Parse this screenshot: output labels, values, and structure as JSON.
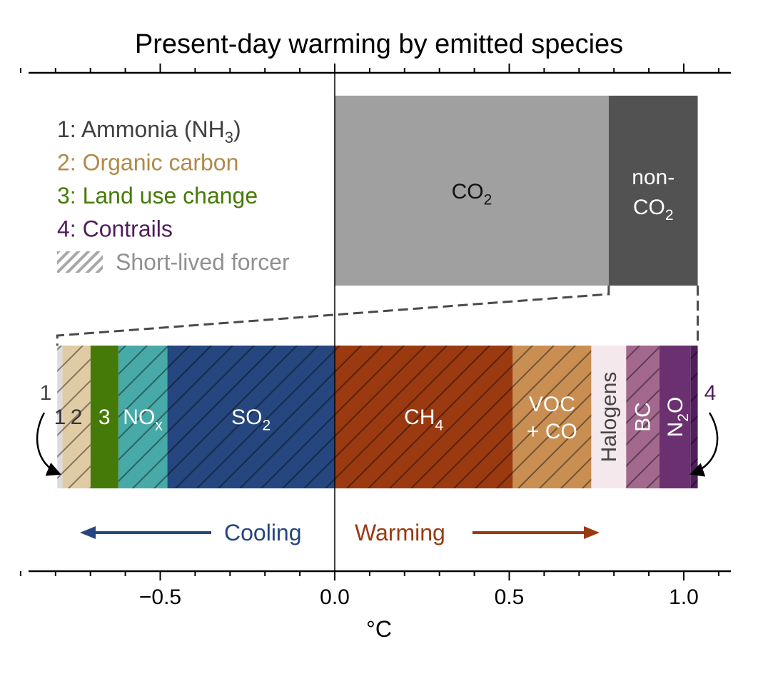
{
  "chart_data": {
    "type": "bar",
    "title": "Present-day warming by emitted species",
    "xlabel": "°C",
    "xlim": [
      -0.9,
      1.13
    ],
    "xticks": [
      "−0.5",
      "0.0",
      "0.5",
      "1.0"
    ],
    "total": {
      "segments": [
        {
          "name": "CO",
          "sub": "2",
          "value": 0.785,
          "color": "#a0a0a0",
          "text_color": "#111111"
        },
        {
          "name": "non-",
          "line2": "CO",
          "sub": "2",
          "value": 0.255,
          "color": "#525252",
          "text_color": "#ffffff"
        }
      ]
    },
    "breakdown": {
      "cooling": [
        {
          "key": "so2",
          "name": "SO",
          "sub": "2",
          "value": -0.48,
          "color": "#25467e",
          "hatched": true,
          "text_color": "#ffffff"
        },
        {
          "key": "nox",
          "name": "NO",
          "sub": "x",
          "value": -0.14,
          "color": "#48aaa8",
          "hatched": true,
          "text_color": "#ffffff"
        },
        {
          "key": "landuse",
          "name": "3",
          "value": -0.08,
          "color": "#467a08",
          "hatched": false,
          "text_color": "#ffffff"
        },
        {
          "key": "orgc",
          "name": "2",
          "value": -0.08,
          "color": "#e0cba4",
          "hatched": true,
          "text_color": "#333333"
        },
        {
          "key": "nh3",
          "name": "1",
          "value": -0.015,
          "color": "#dcdcdc",
          "hatched": true,
          "text_color": "#333333"
        }
      ],
      "warming": [
        {
          "key": "ch4",
          "name": "CH",
          "sub": "4",
          "value": 0.51,
          "color": "#9b3a11",
          "hatched": true,
          "text_color": "#ffffff"
        },
        {
          "key": "voc",
          "name": "VOC",
          "line2": "+ CO",
          "value": 0.225,
          "color": "#c98f52",
          "hatched": true,
          "text_color": "#ffffff"
        },
        {
          "key": "halogens",
          "name": "Halogens",
          "value": 0.1,
          "color": "#f4e8ec",
          "hatched": false,
          "text_color": "#444444",
          "rotated": true
        },
        {
          "key": "bc",
          "name": "BC",
          "value": 0.095,
          "color": "#a3688d",
          "hatched": true,
          "text_color": "#ffffff",
          "rotated": true
        },
        {
          "key": "n2o",
          "name": "N",
          "sub": "2",
          "post": "O",
          "value": 0.09,
          "color": "#6a306f",
          "hatched": false,
          "text_color": "#ffffff",
          "rotated": true
        },
        {
          "key": "contrails",
          "name": "4",
          "value": 0.02,
          "color": "#4f1e5c",
          "hatched": true,
          "text_color": "#ffffff"
        }
      ]
    },
    "legend": [
      {
        "text": "1: Ammonia (NH",
        "sub": "3",
        "post": ")",
        "color": "#404040"
      },
      {
        "text": "2: Organic carbon",
        "color": "#b08a48"
      },
      {
        "text": "3: Land use change",
        "color": "#467a08"
      },
      {
        "text": "4: Contrails",
        "color": "#4f1e5c"
      },
      {
        "text": "Short-lived forcer",
        "color": "#909090",
        "hatch_swatch": true
      }
    ],
    "callouts": {
      "left": {
        "text": "1",
        "color": "#444444"
      },
      "right": {
        "text": "4",
        "color": "#4f1e5c"
      }
    },
    "arrows": {
      "cooling": {
        "text": "Cooling",
        "color": "#25467e"
      },
      "warming": {
        "text": "Warming",
        "color": "#9b3a11"
      }
    }
  }
}
